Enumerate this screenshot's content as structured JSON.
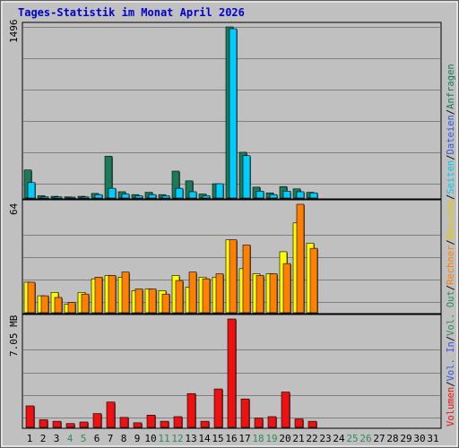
{
  "title": "Tages-Statistik im Monat April 2026",
  "days": [
    "1",
    "2",
    "3",
    "4",
    "5",
    "6",
    "7",
    "8",
    "9",
    "10",
    "11",
    "12",
    "13",
    "14",
    "15",
    "16",
    "17",
    "18",
    "19",
    "20",
    "21",
    "22",
    "23",
    "24",
    "25",
    "26",
    "27",
    "28",
    "29",
    "30",
    "31"
  ],
  "weekend_days": [
    4,
    5,
    11,
    12,
    18,
    19,
    25,
    26
  ],
  "colors": {
    "title": "#0000cc",
    "background": "#c0c0c0",
    "weekday_label": "#000000",
    "weekend_label": "#2e8b57",
    "anfragen": "#1a7a5a",
    "dateien": "#00ccff",
    "seiten": "#00e5ff",
    "besuche": "#ffff00",
    "rechner": "#ff8000",
    "volumen": "#ee1111"
  },
  "panels": {
    "top": {
      "scale_label": "1496"
    },
    "middle": {
      "scale_label": "64"
    },
    "bottom": {
      "scale_label": "7.05 MB"
    }
  },
  "legend": {
    "volumen": "Volumen",
    "vol_in": "Vol. In",
    "vol_out": "Vol. Out",
    "rechner": "Rechner",
    "besuche": "Besuche",
    "seiten": "Seiten",
    "dateien": "Dateien",
    "anfragen": "Anfragen",
    "sep": "/"
  },
  "chart_data": [
    {
      "type": "bar",
      "categories": [
        "1",
        "2",
        "3",
        "4",
        "5",
        "6",
        "7",
        "8",
        "9",
        "10",
        "11",
        "12",
        "13",
        "14",
        "15",
        "16",
        "17",
        "18",
        "19",
        "20",
        "21",
        "22"
      ],
      "ylim": [
        0,
        1496
      ],
      "series": [
        {
          "name": "Anfragen",
          "values": [
            245,
            20,
            15,
            10,
            15,
            40,
            365,
            55,
            30,
            50,
            30,
            235,
            150,
            35,
            125,
            1496,
            400,
            95,
            45,
            100,
            80,
            50
          ]
        },
        {
          "name": "Dateien",
          "values": [
            135,
            10,
            10,
            8,
            10,
            30,
            85,
            35,
            20,
            30,
            20,
            85,
            55,
            20,
            125,
            1480,
            370,
            60,
            30,
            60,
            55,
            45
          ]
        }
      ]
    },
    {
      "type": "bar",
      "categories": [
        "1",
        "2",
        "3",
        "4",
        "5",
        "6",
        "7",
        "8",
        "9",
        "10",
        "11",
        "12",
        "13",
        "14",
        "15",
        "16",
        "17",
        "18",
        "19",
        "20",
        "21",
        "22"
      ],
      "ylim": [
        0,
        64
      ],
      "series": [
        {
          "name": "Besuche",
          "values": [
            18,
            10,
            12,
            5,
            12,
            20,
            22,
            21,
            13,
            14,
            13,
            22,
            15,
            21,
            21,
            43,
            26,
            23,
            23,
            36,
            53,
            41
          ]
        },
        {
          "name": "Rechner",
          "values": [
            18,
            10,
            9,
            6,
            11,
            21,
            22,
            24,
            14,
            14,
            11,
            19,
            24,
            20,
            23,
            43,
            40,
            22,
            23,
            29,
            64,
            38
          ]
        }
      ]
    },
    {
      "type": "bar",
      "categories": [
        "1",
        "2",
        "3",
        "4",
        "5",
        "6",
        "7",
        "8",
        "9",
        "10",
        "11",
        "12",
        "13",
        "14",
        "15",
        "16",
        "17",
        "18",
        "19",
        "20",
        "21",
        "22"
      ],
      "ylim": [
        0,
        7.05
      ],
      "ylabel": "MB",
      "series": [
        {
          "name": "Volumen",
          "values": [
            1.4,
            0.5,
            0.4,
            0.25,
            0.35,
            0.9,
            1.65,
            0.65,
            0.3,
            0.8,
            0.4,
            0.7,
            2.2,
            0.4,
            2.5,
            7.05,
            1.85,
            0.6,
            0.7,
            2.3,
            0.55,
            0.4
          ]
        }
      ]
    }
  ]
}
